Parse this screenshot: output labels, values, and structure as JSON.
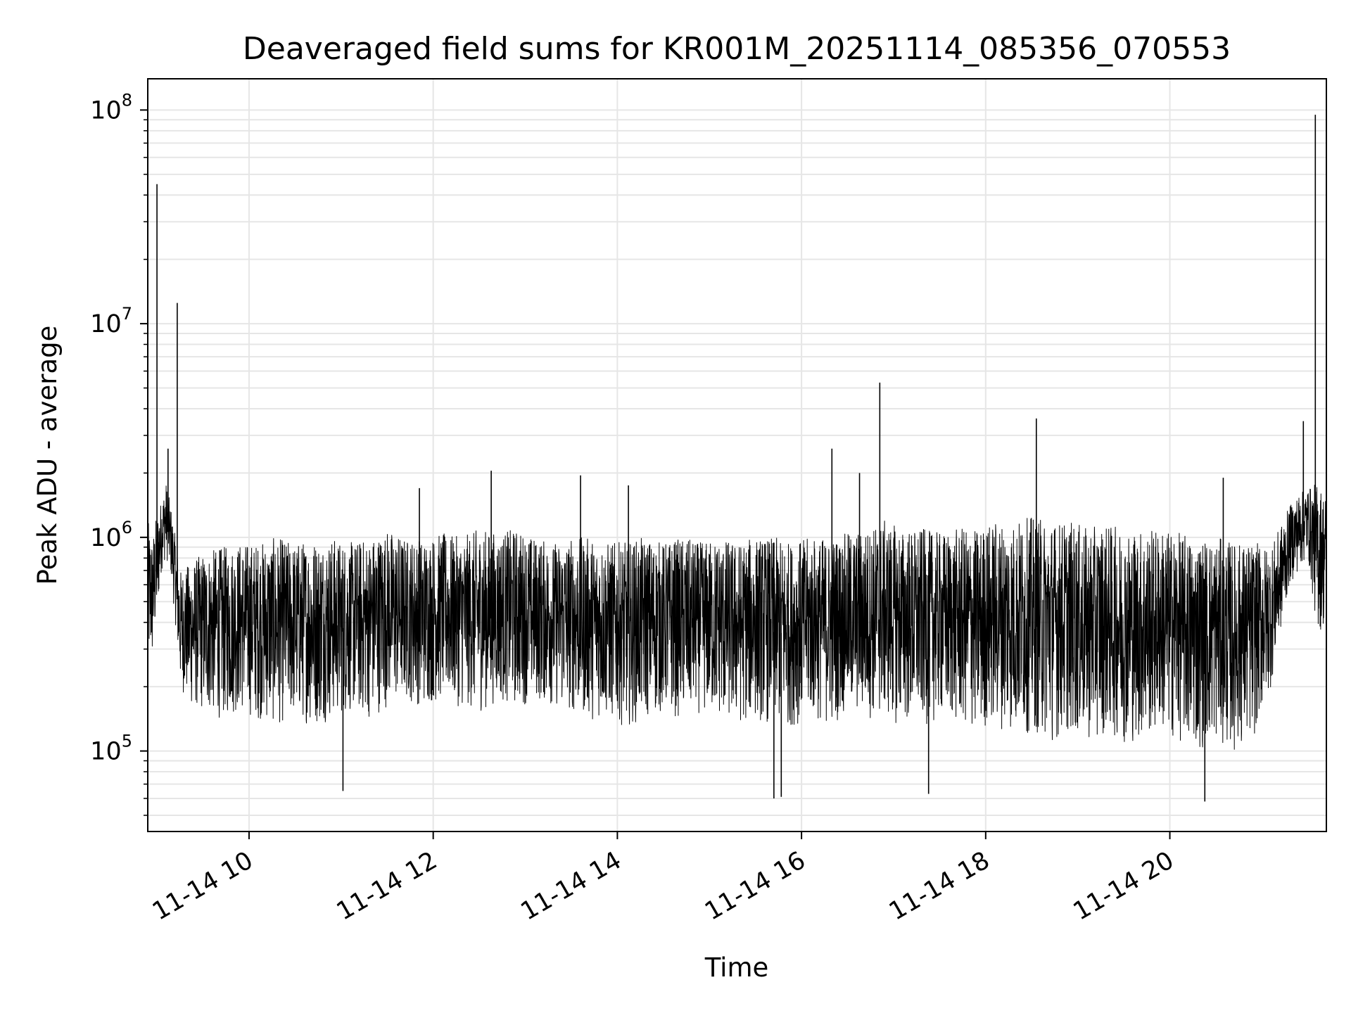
{
  "chart_data": {
    "type": "line",
    "title": "Deaveraged field sums for KR001M_20251114_085356_070553",
    "xlabel": "Time",
    "ylabel": "Peak ADU - average",
    "yscale": "log",
    "ylim": [
      42000,
      140000000
    ],
    "xlim_hours": [
      8.9,
      21.7
    ],
    "grid": true,
    "line_color": "#000000",
    "grid_color": "#e6e6e6",
    "x_ticks": [
      {
        "label": "11-14 10",
        "hour": 10
      },
      {
        "label": "11-14 12",
        "hour": 12
      },
      {
        "label": "11-14 14",
        "hour": 14
      },
      {
        "label": "11-14 16",
        "hour": 16
      },
      {
        "label": "11-14 18",
        "hour": 18
      },
      {
        "label": "11-14 20",
        "hour": 20
      }
    ],
    "y_ticks": [
      {
        "base": "10",
        "exp": "5",
        "value": 100000
      },
      {
        "base": "10",
        "exp": "6",
        "value": 1000000
      },
      {
        "base": "10",
        "exp": "7",
        "value": 10000000
      },
      {
        "base": "10",
        "exp": "8",
        "value": 100000000
      }
    ],
    "series": [
      {
        "name": "deaveraged field sums",
        "x_hours": [
          8.9,
          8.95,
          9.0,
          9.05,
          9.1,
          9.15,
          9.2,
          9.25,
          9.35,
          9.5,
          9.7,
          9.9,
          10.1,
          10.3,
          10.5,
          10.7,
          10.9,
          11.1,
          11.3,
          11.5,
          11.7,
          11.9,
          12.1,
          12.3,
          12.5,
          12.7,
          12.9,
          13.1,
          13.3,
          13.5,
          13.7,
          13.9,
          14.1,
          14.3,
          14.5,
          14.7,
          14.9,
          15.1,
          15.3,
          15.5,
          15.7,
          15.9,
          16.1,
          16.3,
          16.5,
          16.7,
          16.9,
          17.1,
          17.3,
          17.5,
          17.7,
          17.9,
          18.1,
          18.3,
          18.5,
          18.7,
          18.9,
          19.1,
          19.3,
          19.5,
          19.7,
          19.9,
          20.1,
          20.3,
          20.5,
          20.7,
          20.9,
          21.1,
          21.3,
          21.4,
          21.5,
          21.6,
          21.7
        ],
        "y_low": [
          230000,
          250000,
          400000,
          700000,
          800000,
          650000,
          400000,
          200000,
          160000,
          150000,
          140000,
          150000,
          140000,
          130000,
          140000,
          130000,
          140000,
          150000,
          140000,
          160000,
          170000,
          160000,
          170000,
          160000,
          150000,
          170000,
          160000,
          170000,
          160000,
          150000,
          140000,
          140000,
          130000,
          140000,
          150000,
          140000,
          150000,
          140000,
          130000,
          140000,
          130000,
          130000,
          140000,
          130000,
          150000,
          140000,
          140000,
          130000,
          130000,
          140000,
          130000,
          120000,
          130000,
          120000,
          120000,
          110000,
          120000,
          110000,
          120000,
          110000,
          110000,
          120000,
          110000,
          100000,
          110000,
          100000,
          110000,
          200000,
          600000,
          700000,
          800000,
          350000,
          380000
        ],
        "y_high": [
          1200000,
          1000000,
          1300000,
          1500000,
          1800000,
          1400000,
          1000000,
          700000,
          750000,
          850000,
          900000,
          950000,
          950000,
          1000000,
          950000,
          1000000,
          1000000,
          950000,
          1000000,
          1100000,
          1000000,
          1000000,
          1050000,
          1000000,
          1100000,
          1050000,
          1100000,
          1000000,
          950000,
          1000000,
          1000000,
          950000,
          950000,
          1000000,
          950000,
          1000000,
          950000,
          1000000,
          950000,
          1000000,
          1000000,
          950000,
          1000000,
          1000000,
          1050000,
          1100000,
          1200000,
          1100000,
          1100000,
          1050000,
          1100000,
          1100000,
          1200000,
          1200000,
          1250000,
          1200000,
          1200000,
          1100000,
          1150000,
          1100000,
          1100000,
          1100000,
          1050000,
          1000000,
          1000000,
          950000,
          950000,
          900000,
          1400000,
          1600000,
          1700000,
          1800000,
          1600000
        ],
        "spikes": [
          {
            "hour": 9.0,
            "value": 45000000
          },
          {
            "hour": 9.22,
            "value": 12500000
          },
          {
            "hour": 9.12,
            "value": 2600000
          },
          {
            "hour": 12.63,
            "value": 2050000
          },
          {
            "hour": 13.6,
            "value": 1950000
          },
          {
            "hour": 14.12,
            "value": 1750000
          },
          {
            "hour": 11.85,
            "value": 1700000
          },
          {
            "hour": 16.33,
            "value": 2600000
          },
          {
            "hour": 16.63,
            "value": 2000000
          },
          {
            "hour": 16.85,
            "value": 5300000
          },
          {
            "hour": 18.55,
            "value": 3600000
          },
          {
            "hour": 20.58,
            "value": 1900000
          },
          {
            "hour": 21.45,
            "value": 3500000
          },
          {
            "hour": 21.58,
            "value": 95000000
          },
          {
            "hour": 11.02,
            "value": 65000
          },
          {
            "hour": 15.7,
            "value": 60000
          },
          {
            "hour": 15.78,
            "value": 61000
          },
          {
            "hour": 20.38,
            "value": 58000
          },
          {
            "hour": 17.38,
            "value": 63000
          }
        ]
      }
    ]
  }
}
